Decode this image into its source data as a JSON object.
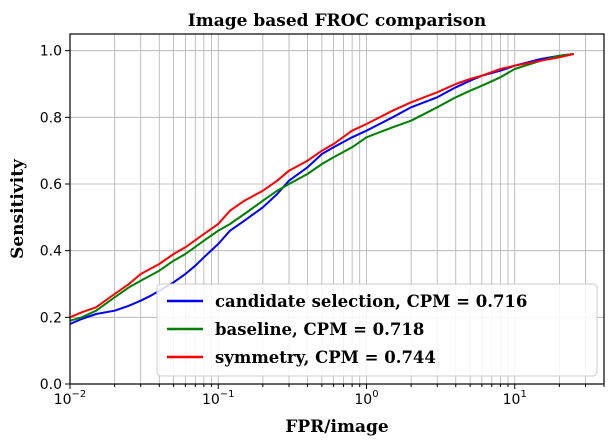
{
  "chart_data": {
    "type": "line",
    "title": "Image based FROC comparison",
    "xlabel": "FPR/image",
    "ylabel": "Sensitivity",
    "xscale": "log",
    "xlim": [
      0.01,
      40
    ],
    "ylim": [
      0.0,
      1.05
    ],
    "grid": true,
    "legend_position": "lower-right",
    "x_ticks": [
      {
        "value": 0.01,
        "base": "10",
        "exp": "−2"
      },
      {
        "value": 0.1,
        "base": "10",
        "exp": "−1"
      },
      {
        "value": 1,
        "base": "10",
        "exp": "0"
      },
      {
        "value": 10,
        "base": "10",
        "exp": "1"
      }
    ],
    "y_ticks": [
      {
        "value": 0.0,
        "label": "0.0"
      },
      {
        "value": 0.2,
        "label": "0.2"
      },
      {
        "value": 0.4,
        "label": "0.4"
      },
      {
        "value": 0.6,
        "label": "0.6"
      },
      {
        "value": 0.8,
        "label": "0.8"
      },
      {
        "value": 1.0,
        "label": "1.0"
      }
    ],
    "series": [
      {
        "name": "candidate selection, CPM  = 0.716",
        "color": "#0000ff",
        "points": [
          [
            0.01,
            0.18
          ],
          [
            0.012,
            0.195
          ],
          [
            0.015,
            0.21
          ],
          [
            0.02,
            0.22
          ],
          [
            0.025,
            0.235
          ],
          [
            0.03,
            0.25
          ],
          [
            0.035,
            0.265
          ],
          [
            0.04,
            0.28
          ],
          [
            0.05,
            0.305
          ],
          [
            0.06,
            0.33
          ],
          [
            0.07,
            0.355
          ],
          [
            0.08,
            0.38
          ],
          [
            0.1,
            0.42
          ],
          [
            0.12,
            0.46
          ],
          [
            0.15,
            0.49
          ],
          [
            0.2,
            0.53
          ],
          [
            0.25,
            0.57
          ],
          [
            0.3,
            0.61
          ],
          [
            0.4,
            0.65
          ],
          [
            0.5,
            0.69
          ],
          [
            0.6,
            0.71
          ],
          [
            0.8,
            0.74
          ],
          [
            1.0,
            0.76
          ],
          [
            1.5,
            0.8
          ],
          [
            2,
            0.83
          ],
          [
            3,
            0.86
          ],
          [
            4,
            0.89
          ],
          [
            5,
            0.91
          ],
          [
            6,
            0.925
          ],
          [
            8,
            0.94
          ],
          [
            10,
            0.955
          ],
          [
            15,
            0.975
          ],
          [
            20,
            0.985
          ],
          [
            25,
            0.99
          ]
        ]
      },
      {
        "name": "baseline, CPM  = 0.718",
        "color": "#008000",
        "points": [
          [
            0.01,
            0.19
          ],
          [
            0.012,
            0.2
          ],
          [
            0.015,
            0.22
          ],
          [
            0.02,
            0.26
          ],
          [
            0.025,
            0.29
          ],
          [
            0.03,
            0.31
          ],
          [
            0.04,
            0.34
          ],
          [
            0.05,
            0.37
          ],
          [
            0.06,
            0.39
          ],
          [
            0.08,
            0.43
          ],
          [
            0.1,
            0.46
          ],
          [
            0.12,
            0.48
          ],
          [
            0.15,
            0.51
          ],
          [
            0.2,
            0.55
          ],
          [
            0.25,
            0.58
          ],
          [
            0.3,
            0.6
          ],
          [
            0.4,
            0.63
          ],
          [
            0.5,
            0.66
          ],
          [
            0.6,
            0.68
          ],
          [
            0.8,
            0.71
          ],
          [
            1.0,
            0.74
          ],
          [
            1.5,
            0.77
          ],
          [
            2,
            0.79
          ],
          [
            3,
            0.83
          ],
          [
            4,
            0.86
          ],
          [
            5,
            0.88
          ],
          [
            6,
            0.895
          ],
          [
            8,
            0.92
          ],
          [
            10,
            0.945
          ],
          [
            15,
            0.97
          ],
          [
            20,
            0.985
          ],
          [
            25,
            0.99
          ]
        ]
      },
      {
        "name": "symmetry, CPM  = 0.744",
        "color": "#ff0000",
        "points": [
          [
            0.01,
            0.2
          ],
          [
            0.012,
            0.215
          ],
          [
            0.015,
            0.23
          ],
          [
            0.02,
            0.27
          ],
          [
            0.025,
            0.3
          ],
          [
            0.03,
            0.33
          ],
          [
            0.04,
            0.36
          ],
          [
            0.05,
            0.39
          ],
          [
            0.06,
            0.41
          ],
          [
            0.08,
            0.45
          ],
          [
            0.1,
            0.48
          ],
          [
            0.12,
            0.52
          ],
          [
            0.15,
            0.55
          ],
          [
            0.2,
            0.58
          ],
          [
            0.25,
            0.61
          ],
          [
            0.3,
            0.64
          ],
          [
            0.4,
            0.67
          ],
          [
            0.5,
            0.7
          ],
          [
            0.6,
            0.72
          ],
          [
            0.8,
            0.76
          ],
          [
            1.0,
            0.78
          ],
          [
            1.5,
            0.82
          ],
          [
            2,
            0.845
          ],
          [
            3,
            0.875
          ],
          [
            4,
            0.9
          ],
          [
            5,
            0.915
          ],
          [
            6,
            0.925
          ],
          [
            8,
            0.945
          ],
          [
            10,
            0.955
          ],
          [
            15,
            0.97
          ],
          [
            20,
            0.98
          ],
          [
            25,
            0.99
          ]
        ]
      }
    ]
  }
}
